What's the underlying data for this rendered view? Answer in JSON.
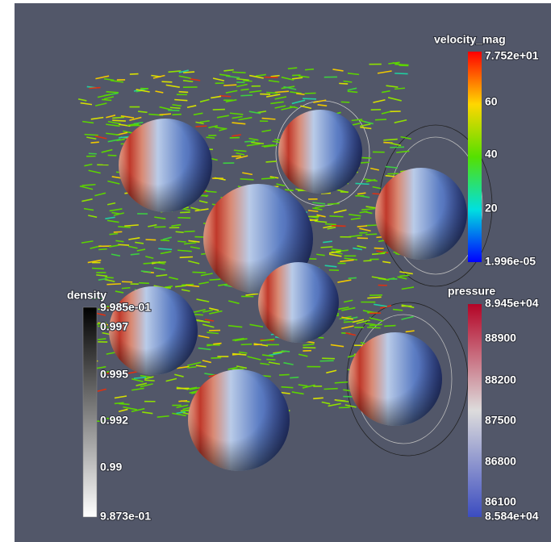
{
  "legends": {
    "velocity": {
      "title": "velocity_mag",
      "labels": [
        "7.752e+01",
        "60",
        "40",
        "20",
        "1.996e-05"
      ]
    },
    "density": {
      "title": "density",
      "labels": [
        "9.985e-01",
        "0.997",
        "0.995",
        "0.992",
        "0.99",
        "9.873e-01"
      ]
    },
    "pressure": {
      "title": "pressure",
      "labels": [
        "8.945e+04",
        "88900",
        "88200",
        "87500",
        "86800",
        "86100",
        "8.584e+04"
      ]
    }
  }
}
